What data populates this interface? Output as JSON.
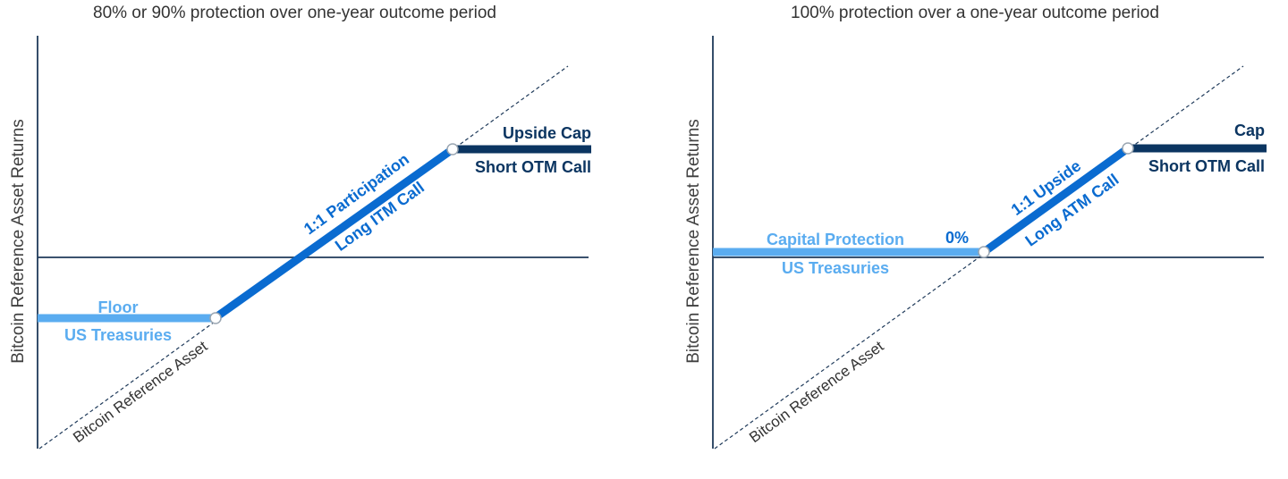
{
  "colors": {
    "light_blue": "#5aacf0",
    "mid_blue": "#0a6bd0",
    "dark_navy": "#0b3561",
    "axis": "#1f3a5a",
    "text_grey": "#404040"
  },
  "left": {
    "title": "80% or 90% protection over one-year outcome period",
    "y_axis_label": "Bitcoin Reference Asset Returns",
    "reference_label": "Bitcoin Reference Asset",
    "floor_label": "Floor",
    "floor_sub": "US Treasuries",
    "participation_label": "1:1 Participation",
    "participation_sub": "Long ITM Call",
    "cap_label": "Upside Cap",
    "cap_sub": "Short OTM Call"
  },
  "right": {
    "title": "100% protection over a one-year outcome period",
    "y_axis_label": "Bitcoin Reference Asset Returns",
    "reference_label": "Bitcoin Reference Asset",
    "protection_label": "Capital Protection",
    "protection_sub": "US Treasuries",
    "zero_label": "0%",
    "upside_label": "1:1 Upside",
    "upside_sub": "Long ATM Call",
    "cap_label": "Cap",
    "cap_sub": "Short OTM Call"
  }
}
